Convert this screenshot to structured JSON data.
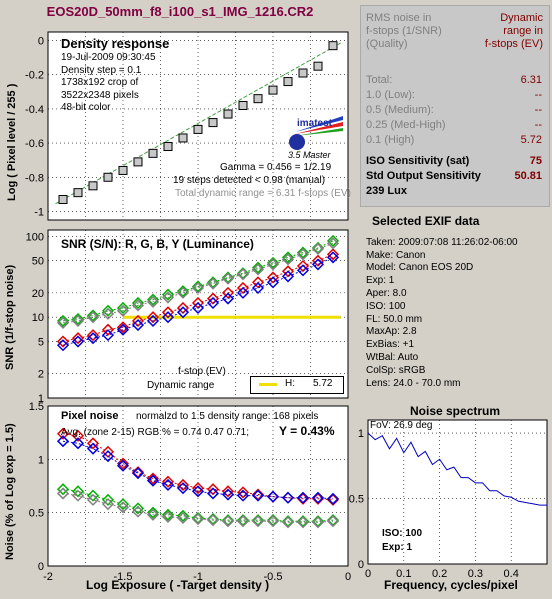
{
  "title": "EOS20D_50mm_f8_i100_s1_IMG_1216.CR2",
  "density_panel": {
    "heading": "Density response",
    "info": [
      "19-Jul-2009 09:30:45",
      "Density step = 0.1",
      "1738x192 crop of",
      "3522x2348 pixels",
      "48-bit color"
    ],
    "gamma": "Gamma = 0.456 = 1/2.19",
    "steps": "19 steps detected < 0.98 (manual)",
    "dynamic_range": "Total dynamic range = 6.31 f-stops (EV)",
    "logo_text": "imatest",
    "logo_sub": "3.5  Master",
    "ylabel": "Log ( Pixel level / 255 )",
    "yticks": [
      "0",
      "-0.2",
      "-0.4",
      "-0.6",
      "-0.8",
      "-1"
    ]
  },
  "snr_panel": {
    "heading": "SNR (S/N): R, G, B, Y (Luminance)",
    "ylabel": "SNR (1/f-stop noise)",
    "yticks": [
      "100",
      "50",
      "20",
      "10",
      "5",
      "2",
      "1"
    ],
    "legend_fstop": "f-stop (EV)",
    "legend_dr": "Dynamic range",
    "legend_h": "H:",
    "legend_h_val": "5.72"
  },
  "noise_panel": {
    "heading": "Pixel noise",
    "norm": "normalzd to 1.5 density range: 168 pixels",
    "avg": "Avg. (zone 2-15) RGB % = 0.74  0.47  0.71;",
    "y_label": "Y = 0.43%",
    "ylabel": "Noise (% of Log exp = 1.5)",
    "yticks": [
      "1.5",
      "1",
      "0.5",
      "0"
    ],
    "xticks": [
      "-2",
      "-1.5",
      "-1",
      "-0.5",
      "0"
    ],
    "xlabel": "Log Exposure ( -Target density )"
  },
  "rms": {
    "col1_head": [
      "RMS noise in",
      "f-stops (1/SNR)",
      "(Quality)"
    ],
    "col2_head": [
      "Dynamic",
      "range in",
      "f-stops (EV)"
    ],
    "rows": [
      {
        "label": "Total:",
        "val": "6.31"
      },
      {
        "label": "1.0   (Low):",
        "val": "--"
      },
      {
        "label": "0.5   (Medium):",
        "val": "--"
      },
      {
        "label": "0.25 (Med-High)",
        "val": "--"
      },
      {
        "label": "0.1   (High)",
        "val": "5.72"
      }
    ],
    "iso_label": "ISO Sensitivity (sat)",
    "iso_val": "75",
    "sos_label": "Std Output Sensitivity",
    "sos_val": "50.81",
    "lux": "239 Lux"
  },
  "exif": {
    "heading": "Selected EXIF data",
    "lines": [
      "Taken: 2009:07:08 11:26:02-06:00",
      "Make:  Canon",
      "Model: Canon EOS 20D",
      "Exp:   1",
      "Aper:  8.0",
      "ISO:   100",
      "FL:    50.0 mm",
      "MaxAp: 2.8",
      "ExBias: +1",
      "WtBal: Auto",
      "ColSp: sRGB",
      "Lens:  24.0 - 70.0 mm",
      "FoV:   26.9 deg"
    ]
  },
  "spectrum": {
    "heading": "Noise spectrum",
    "xlabel": "Frequency, cycles/pixel",
    "xticks": [
      "0",
      "0.1",
      "0.2",
      "0.3",
      "0.4"
    ],
    "yticks": [
      "1",
      "0.5",
      "0"
    ],
    "iso": "ISO:   100",
    "exp": "Exp:   1"
  },
  "colors": {
    "red": "#e00000",
    "green": "#00b000",
    "blue": "#0000e0",
    "gray": "#808080",
    "yellow": "#f0e000",
    "title": "#800040"
  },
  "chart_data": [
    {
      "type": "scatter",
      "title": "Density response",
      "ylabel": "Log ( Pixel level / 255 )",
      "x": [
        -1.9,
        -1.8,
        -1.7,
        -1.6,
        -1.5,
        -1.4,
        -1.3,
        -1.2,
        -1.1,
        -1.0,
        -0.9,
        -0.8,
        -0.7,
        -0.6,
        -0.5,
        -0.4,
        -0.3,
        -0.2,
        -0.1
      ],
      "values": [
        -0.93,
        -0.89,
        -0.85,
        -0.8,
        -0.76,
        -0.71,
        -0.66,
        -0.62,
        -0.57,
        -0.52,
        -0.48,
        -0.43,
        -0.38,
        -0.34,
        -0.29,
        -0.24,
        -0.19,
        -0.15,
        -0.03
      ],
      "xlim": [
        -2,
        0
      ],
      "ylim": [
        -1.05,
        0.05
      ]
    },
    {
      "type": "line",
      "title": "SNR (S/N): R, G, B, Y (Luminance)",
      "ylabel": "SNR (1/f-stop noise)",
      "yscale": "log",
      "x": [
        -1.9,
        -1.8,
        -1.7,
        -1.6,
        -1.5,
        -1.4,
        -1.3,
        -1.2,
        -1.1,
        -1.0,
        -0.9,
        -0.8,
        -0.7,
        -0.6,
        -0.5,
        -0.4,
        -0.3,
        -0.2,
        -0.1
      ],
      "series": [
        {
          "name": "R",
          "values": [
            5,
            5.5,
            6,
            7,
            7.5,
            9,
            10,
            11.5,
            13,
            15,
            17,
            20,
            23,
            27,
            31,
            37,
            43,
            50,
            60
          ]
        },
        {
          "name": "G",
          "values": [
            9,
            9.5,
            10.5,
            12,
            13,
            15,
            16.5,
            19,
            21,
            24,
            27,
            31,
            35,
            41,
            47,
            55,
            63,
            72,
            88
          ]
        },
        {
          "name": "B",
          "values": [
            4.5,
            5,
            5.5,
            6,
            7,
            8,
            9,
            10,
            11.5,
            13,
            15,
            17,
            20,
            23,
            27,
            32,
            38,
            45,
            55
          ]
        },
        {
          "name": "Y",
          "values": [
            8.5,
            9,
            10,
            11,
            12,
            14,
            15.5,
            17.5,
            20,
            23,
            26,
            30,
            34,
            39,
            45,
            52,
            60,
            70,
            82
          ]
        }
      ],
      "ylim": [
        1,
        120
      ],
      "dynamic_range_H": 5.72
    },
    {
      "type": "line",
      "title": "Pixel noise",
      "ylabel": "Noise (% of Log exp = 1.5)",
      "xlabel": "Log Exposure ( -Target density )",
      "x": [
        -1.9,
        -1.8,
        -1.7,
        -1.6,
        -1.5,
        -1.4,
        -1.3,
        -1.2,
        -1.1,
        -1.0,
        -0.9,
        -0.8,
        -0.7,
        -0.6,
        -0.5,
        -0.4,
        -0.3,
        -0.2,
        -0.1
      ],
      "series": [
        {
          "name": "R",
          "values": [
            1.24,
            1.22,
            1.15,
            1.07,
            0.96,
            0.88,
            0.82,
            0.79,
            0.76,
            0.73,
            0.72,
            0.7,
            0.69,
            0.67,
            0.65,
            0.64,
            0.63,
            0.63,
            0.62
          ]
        },
        {
          "name": "G",
          "values": [
            0.72,
            0.7,
            0.66,
            0.62,
            0.58,
            0.54,
            0.5,
            0.48,
            0.47,
            0.45,
            0.44,
            0.43,
            0.43,
            0.43,
            0.43,
            0.42,
            0.42,
            0.42,
            0.43
          ]
        },
        {
          "name": "B",
          "values": [
            1.17,
            1.15,
            1.1,
            1.03,
            0.94,
            0.87,
            0.8,
            0.76,
            0.73,
            0.7,
            0.68,
            0.67,
            0.66,
            0.66,
            0.65,
            0.64,
            0.64,
            0.64,
            0.63
          ]
        },
        {
          "name": "Y",
          "values": [
            0.68,
            0.66,
            0.62,
            0.58,
            0.55,
            0.51,
            0.48,
            0.46,
            0.45,
            0.44,
            0.43,
            0.42,
            0.42,
            0.42,
            0.42,
            0.41,
            0.41,
            0.41,
            0.42
          ]
        }
      ],
      "xlim": [
        -2,
        0
      ],
      "ylim": [
        0,
        1.5
      ]
    },
    {
      "type": "line",
      "title": "Noise spectrum",
      "xlabel": "Frequency, cycles/pixel",
      "x": [
        0,
        0.02,
        0.04,
        0.06,
        0.08,
        0.1,
        0.12,
        0.14,
        0.16,
        0.18,
        0.2,
        0.22,
        0.24,
        0.26,
        0.28,
        0.3,
        0.32,
        0.34,
        0.36,
        0.38,
        0.4,
        0.42,
        0.44,
        0.46,
        0.48,
        0.5
      ],
      "values": [
        1.0,
        0.95,
        0.98,
        0.88,
        0.96,
        0.85,
        0.93,
        0.82,
        0.86,
        0.76,
        0.8,
        0.72,
        0.74,
        0.66,
        0.66,
        0.62,
        0.62,
        0.56,
        0.56,
        0.52,
        0.51,
        0.48,
        0.47,
        0.46,
        0.45,
        0.45
      ],
      "xlim": [
        0,
        0.5
      ],
      "ylim": [
        0,
        1.1
      ]
    }
  ]
}
